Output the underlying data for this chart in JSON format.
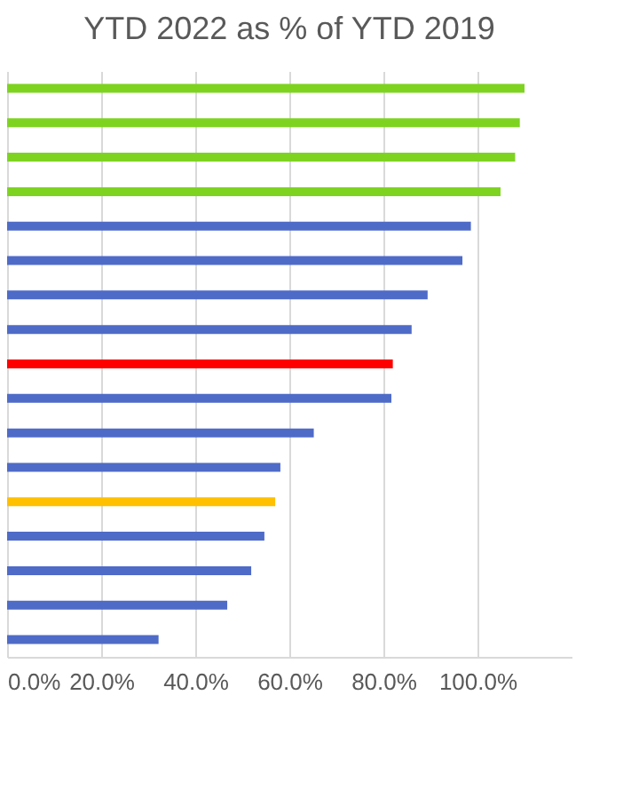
{
  "chart_data": {
    "type": "bar",
    "orientation": "horizontal",
    "title": "YTD 2022 as % of YTD 2019",
    "categories": [
      null,
      null,
      null,
      null,
      null,
      null,
      null,
      null,
      null,
      null,
      null,
      null,
      null,
      null,
      null,
      null,
      null
    ],
    "values": [
      110,
      109,
      108,
      104.9,
      98.6,
      96.8,
      89.4,
      86.0,
      82.0,
      81.7,
      65.2,
      58.1,
      57.0,
      54.7,
      51.9,
      46.8,
      32.2
    ],
    "colors": [
      "#7ed321",
      "#7ed321",
      "#7ed321",
      "#7ed321",
      "#4f6bc8",
      "#4f6bc8",
      "#4f6bc8",
      "#4f6bc8",
      "#ff0000",
      "#4f6bc8",
      "#4f6bc8",
      "#4f6bc8",
      "#ffc000",
      "#4f6bc8",
      "#4f6bc8",
      "#4f6bc8",
      "#4f6bc8"
    ],
    "xlim": [
      0,
      120
    ],
    "xticks": [
      {
        "value": 0,
        "label": "0.0%"
      },
      {
        "value": 20,
        "label": "20.0%"
      },
      {
        "value": 40,
        "label": "40.0%"
      },
      {
        "value": 60,
        "label": "60.0%"
      },
      {
        "value": 80,
        "label": "80.0%"
      },
      {
        "value": 100,
        "label": "100.0%"
      }
    ],
    "grid": "x",
    "tick_labels": "x"
  }
}
